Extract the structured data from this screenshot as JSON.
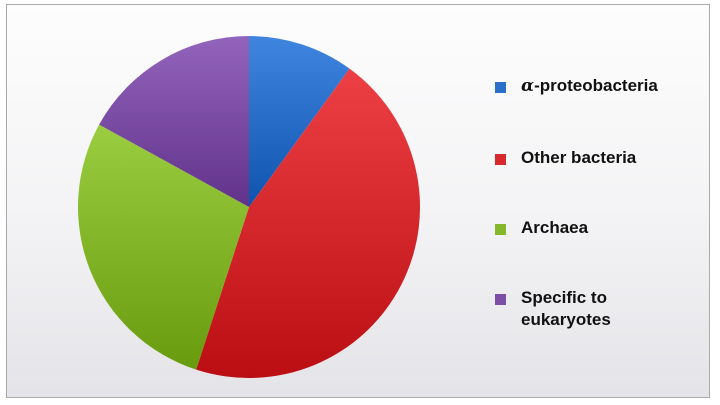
{
  "chart_data": {
    "type": "pie",
    "title": "",
    "start_angle_deg": 0,
    "direction": "clockwise",
    "slices": [
      {
        "label": "α-proteobacteria",
        "label_symbol": "α",
        "label_rest": "-proteobacteria",
        "value": 10,
        "color": "#2a6fc9"
      },
      {
        "label": "Other bacteria",
        "value": 45,
        "color": "#d62a2f"
      },
      {
        "label": "Archaea",
        "value": 28,
        "color": "#84b82a"
      },
      {
        "label": "Specific to eukaryotes",
        "value": 17,
        "color": "#7d4ea6"
      }
    ],
    "legend": "right"
  },
  "legend": {
    "items": [
      {
        "symbol": "α",
        "text": "-proteobacteria",
        "color": "#2a6fc9"
      },
      {
        "text": "Other bacteria",
        "color": "#d62a2f"
      },
      {
        "text": "Archaea",
        "color": "#84b82a"
      },
      {
        "text": "Specific to\neukaryotes",
        "color": "#7d4ea6"
      }
    ]
  }
}
